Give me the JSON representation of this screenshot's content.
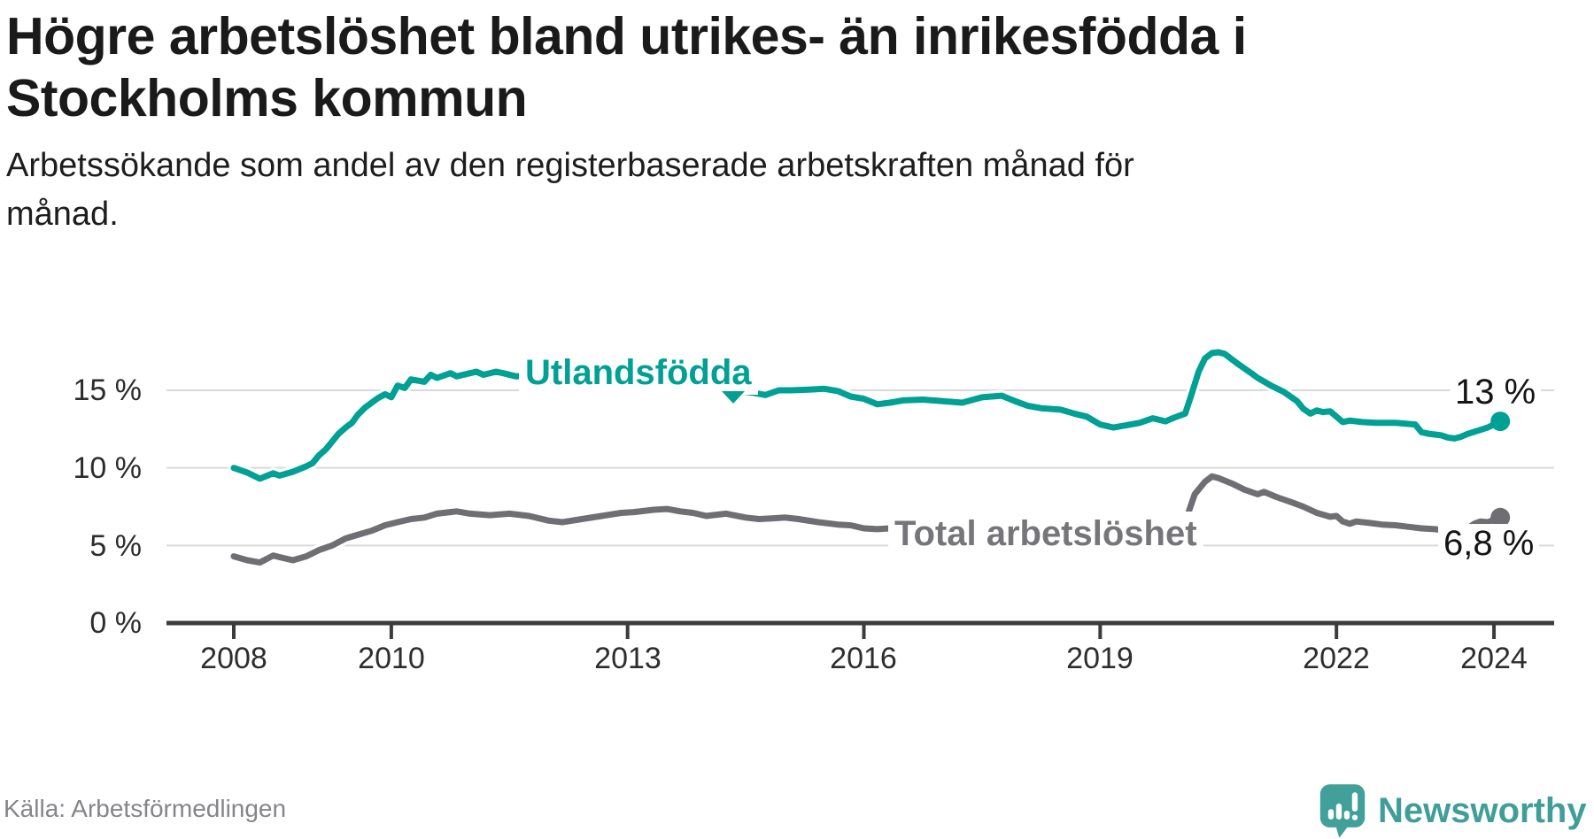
{
  "header": {
    "title_lines": [
      "Högre arbetslöshet bland utrikes- än inrikesfödda i",
      "Stockholms kommun"
    ],
    "subtitle_lines": [
      "Arbetssökande som andel av den registerbaserade arbetskraften månad för",
      "månad."
    ]
  },
  "footer": {
    "source": "Källa: Arbetsförmedlingen",
    "brand": "Newsworthy"
  },
  "colors": {
    "foreign_born_series": "#00a094",
    "total_series": "#6f6f73",
    "total_label": "#76767a",
    "grid": "#d9d9d9",
    "axis": "#3c3c3c",
    "value_label_text": "#141414",
    "brand_teal": "#3f9f98"
  },
  "chart_data": {
    "type": "line",
    "title": "",
    "xlabel": "",
    "ylabel": "",
    "x_unit": "decimal year (monthly data)",
    "xlim": [
      2007.15,
      2024.75
    ],
    "ylim": [
      0,
      18.5
    ],
    "grid": "horizontal",
    "legend_position": "inline-labels-on-lines",
    "y_ticks": [
      {
        "value": 15,
        "label": "15 %"
      },
      {
        "value": 10,
        "label": "10 %"
      },
      {
        "value": 5,
        "label": "5 %"
      },
      {
        "value": 0,
        "label": "0 %"
      }
    ],
    "x_ticks": [
      {
        "value": 2008,
        "label": "2008"
      },
      {
        "value": 2010,
        "label": "2010"
      },
      {
        "value": 2013,
        "label": "2013"
      },
      {
        "value": 2016,
        "label": "2016"
      },
      {
        "value": 2019,
        "label": "2019"
      },
      {
        "value": 2022,
        "label": "2022"
      },
      {
        "value": 2024,
        "label": "2024"
      }
    ],
    "series": [
      {
        "name": "Utlandsfödda",
        "color": "#00a094",
        "end_label": "13 %",
        "end_value": 13.0,
        "points": [
          [
            2008.0,
            10.0
          ],
          [
            2008.17,
            9.7
          ],
          [
            2008.33,
            9.3
          ],
          [
            2008.5,
            9.65
          ],
          [
            2008.58,
            9.5
          ],
          [
            2008.75,
            9.75
          ],
          [
            2008.92,
            10.1
          ],
          [
            2009.0,
            10.3
          ],
          [
            2009.08,
            10.8
          ],
          [
            2009.17,
            11.2
          ],
          [
            2009.33,
            12.2
          ],
          [
            2009.42,
            12.6
          ],
          [
            2009.5,
            12.9
          ],
          [
            2009.58,
            13.45
          ],
          [
            2009.67,
            13.9
          ],
          [
            2009.83,
            14.5
          ],
          [
            2009.92,
            14.75
          ],
          [
            2010.0,
            14.55
          ],
          [
            2010.08,
            15.3
          ],
          [
            2010.17,
            15.15
          ],
          [
            2010.25,
            15.7
          ],
          [
            2010.42,
            15.55
          ],
          [
            2010.5,
            16.0
          ],
          [
            2010.58,
            15.8
          ],
          [
            2010.75,
            16.1
          ],
          [
            2010.83,
            15.9
          ],
          [
            2011.0,
            16.1
          ],
          [
            2011.08,
            16.2
          ],
          [
            2011.17,
            16.0
          ],
          [
            2011.33,
            16.2
          ],
          [
            2011.42,
            16.1
          ],
          [
            2011.58,
            15.9
          ],
          [
            2011.75,
            15.95
          ],
          [
            2011.92,
            16.0
          ],
          [
            2012.08,
            16.05
          ],
          [
            2012.33,
            16.0
          ],
          [
            2012.58,
            15.95
          ],
          [
            2012.83,
            15.9
          ],
          [
            2013.08,
            15.85
          ],
          [
            2013.33,
            15.75
          ],
          [
            2013.58,
            15.6
          ],
          [
            2013.83,
            15.45
          ],
          [
            2014.08,
            15.2
          ],
          [
            2014.33,
            15.0
          ],
          [
            2014.58,
            14.85
          ],
          [
            2014.75,
            14.7
          ],
          [
            2014.92,
            15.0
          ],
          [
            2015.08,
            15.0
          ],
          [
            2015.33,
            15.05
          ],
          [
            2015.5,
            15.1
          ],
          [
            2015.67,
            14.95
          ],
          [
            2015.83,
            14.6
          ],
          [
            2016.0,
            14.45
          ],
          [
            2016.17,
            14.1
          ],
          [
            2016.33,
            14.2
          ],
          [
            2016.5,
            14.35
          ],
          [
            2016.75,
            14.4
          ],
          [
            2017.0,
            14.3
          ],
          [
            2017.25,
            14.2
          ],
          [
            2017.5,
            14.55
          ],
          [
            2017.75,
            14.65
          ],
          [
            2017.92,
            14.3
          ],
          [
            2018.08,
            14.0
          ],
          [
            2018.25,
            13.85
          ],
          [
            2018.5,
            13.75
          ],
          [
            2018.67,
            13.5
          ],
          [
            2018.83,
            13.3
          ],
          [
            2019.0,
            12.8
          ],
          [
            2019.17,
            12.6
          ],
          [
            2019.33,
            12.75
          ],
          [
            2019.5,
            12.9
          ],
          [
            2019.67,
            13.2
          ],
          [
            2019.83,
            13.0
          ],
          [
            2019.92,
            13.2
          ],
          [
            2020.0,
            13.35
          ],
          [
            2020.08,
            13.5
          ],
          [
            2020.17,
            14.9
          ],
          [
            2020.25,
            16.2
          ],
          [
            2020.33,
            17.05
          ],
          [
            2020.42,
            17.4
          ],
          [
            2020.5,
            17.45
          ],
          [
            2020.58,
            17.35
          ],
          [
            2020.75,
            16.7
          ],
          [
            2020.92,
            16.1
          ],
          [
            2021.0,
            15.8
          ],
          [
            2021.17,
            15.3
          ],
          [
            2021.33,
            14.9
          ],
          [
            2021.5,
            14.3
          ],
          [
            2021.58,
            13.8
          ],
          [
            2021.67,
            13.5
          ],
          [
            2021.75,
            13.7
          ],
          [
            2021.83,
            13.6
          ],
          [
            2021.92,
            13.65
          ],
          [
            2022.0,
            13.3
          ],
          [
            2022.08,
            12.95
          ],
          [
            2022.17,
            13.05
          ],
          [
            2022.33,
            12.95
          ],
          [
            2022.5,
            12.9
          ],
          [
            2022.75,
            12.9
          ],
          [
            2023.0,
            12.8
          ],
          [
            2023.08,
            12.3
          ],
          [
            2023.17,
            12.2
          ],
          [
            2023.33,
            12.1
          ],
          [
            2023.42,
            11.95
          ],
          [
            2023.5,
            11.9
          ],
          [
            2023.58,
            12.0
          ],
          [
            2023.67,
            12.2
          ],
          [
            2023.83,
            12.45
          ],
          [
            2023.92,
            12.6
          ],
          [
            2024.08,
            13.0
          ]
        ]
      },
      {
        "name": "Total arbetslöshet",
        "color": "#6f6f73",
        "end_label": "6,8 %",
        "end_value": 6.8,
        "points": [
          [
            2008.0,
            4.3
          ],
          [
            2008.17,
            4.05
          ],
          [
            2008.33,
            3.9
          ],
          [
            2008.5,
            4.35
          ],
          [
            2008.58,
            4.25
          ],
          [
            2008.75,
            4.05
          ],
          [
            2008.92,
            4.3
          ],
          [
            2009.08,
            4.7
          ],
          [
            2009.25,
            5.0
          ],
          [
            2009.42,
            5.45
          ],
          [
            2009.58,
            5.7
          ],
          [
            2009.75,
            5.95
          ],
          [
            2009.92,
            6.3
          ],
          [
            2010.08,
            6.5
          ],
          [
            2010.25,
            6.7
          ],
          [
            2010.42,
            6.8
          ],
          [
            2010.58,
            7.05
          ],
          [
            2010.83,
            7.2
          ],
          [
            2011.0,
            7.05
          ],
          [
            2011.25,
            6.95
          ],
          [
            2011.5,
            7.05
          ],
          [
            2011.75,
            6.9
          ],
          [
            2012.0,
            6.6
          ],
          [
            2012.17,
            6.5
          ],
          [
            2012.42,
            6.7
          ],
          [
            2012.67,
            6.9
          ],
          [
            2012.92,
            7.1
          ],
          [
            2013.08,
            7.15
          ],
          [
            2013.33,
            7.3
          ],
          [
            2013.5,
            7.35
          ],
          [
            2013.67,
            7.2
          ],
          [
            2013.83,
            7.1
          ],
          [
            2014.0,
            6.9
          ],
          [
            2014.25,
            7.05
          ],
          [
            2014.5,
            6.8
          ],
          [
            2014.67,
            6.7
          ],
          [
            2014.83,
            6.75
          ],
          [
            2015.0,
            6.8
          ],
          [
            2015.17,
            6.7
          ],
          [
            2015.42,
            6.5
          ],
          [
            2015.67,
            6.35
          ],
          [
            2015.83,
            6.3
          ],
          [
            2016.0,
            6.1
          ],
          [
            2016.17,
            6.05
          ],
          [
            2016.33,
            6.1
          ],
          [
            2016.58,
            6.15
          ],
          [
            2016.83,
            6.2
          ],
          [
            2017.08,
            6.25
          ],
          [
            2017.33,
            6.3
          ],
          [
            2017.58,
            6.2
          ],
          [
            2017.83,
            6.1
          ],
          [
            2018.08,
            6.0
          ],
          [
            2018.33,
            5.95
          ],
          [
            2018.58,
            5.9
          ],
          [
            2018.83,
            5.8
          ],
          [
            2019.08,
            5.7
          ],
          [
            2019.33,
            5.65
          ],
          [
            2019.58,
            5.6
          ],
          [
            2019.83,
            5.6
          ],
          [
            2019.97,
            5.75
          ],
          [
            2020.08,
            6.3
          ],
          [
            2020.13,
            7.25
          ],
          [
            2020.2,
            8.3
          ],
          [
            2020.33,
            9.1
          ],
          [
            2020.42,
            9.45
          ],
          [
            2020.5,
            9.35
          ],
          [
            2020.67,
            9.0
          ],
          [
            2020.83,
            8.6
          ],
          [
            2021.0,
            8.3
          ],
          [
            2021.08,
            8.45
          ],
          [
            2021.25,
            8.1
          ],
          [
            2021.42,
            7.8
          ],
          [
            2021.58,
            7.5
          ],
          [
            2021.75,
            7.1
          ],
          [
            2021.92,
            6.85
          ],
          [
            2022.0,
            6.9
          ],
          [
            2022.08,
            6.55
          ],
          [
            2022.17,
            6.4
          ],
          [
            2022.25,
            6.55
          ],
          [
            2022.42,
            6.45
          ],
          [
            2022.58,
            6.35
          ],
          [
            2022.75,
            6.3
          ],
          [
            2022.92,
            6.2
          ],
          [
            2023.08,
            6.1
          ],
          [
            2023.25,
            6.05
          ],
          [
            2023.42,
            5.95
          ],
          [
            2023.58,
            5.9
          ],
          [
            2023.67,
            6.1
          ],
          [
            2023.75,
            6.4
          ],
          [
            2023.83,
            6.55
          ],
          [
            2023.92,
            6.5
          ],
          [
            2024.08,
            6.8
          ]
        ]
      }
    ]
  }
}
